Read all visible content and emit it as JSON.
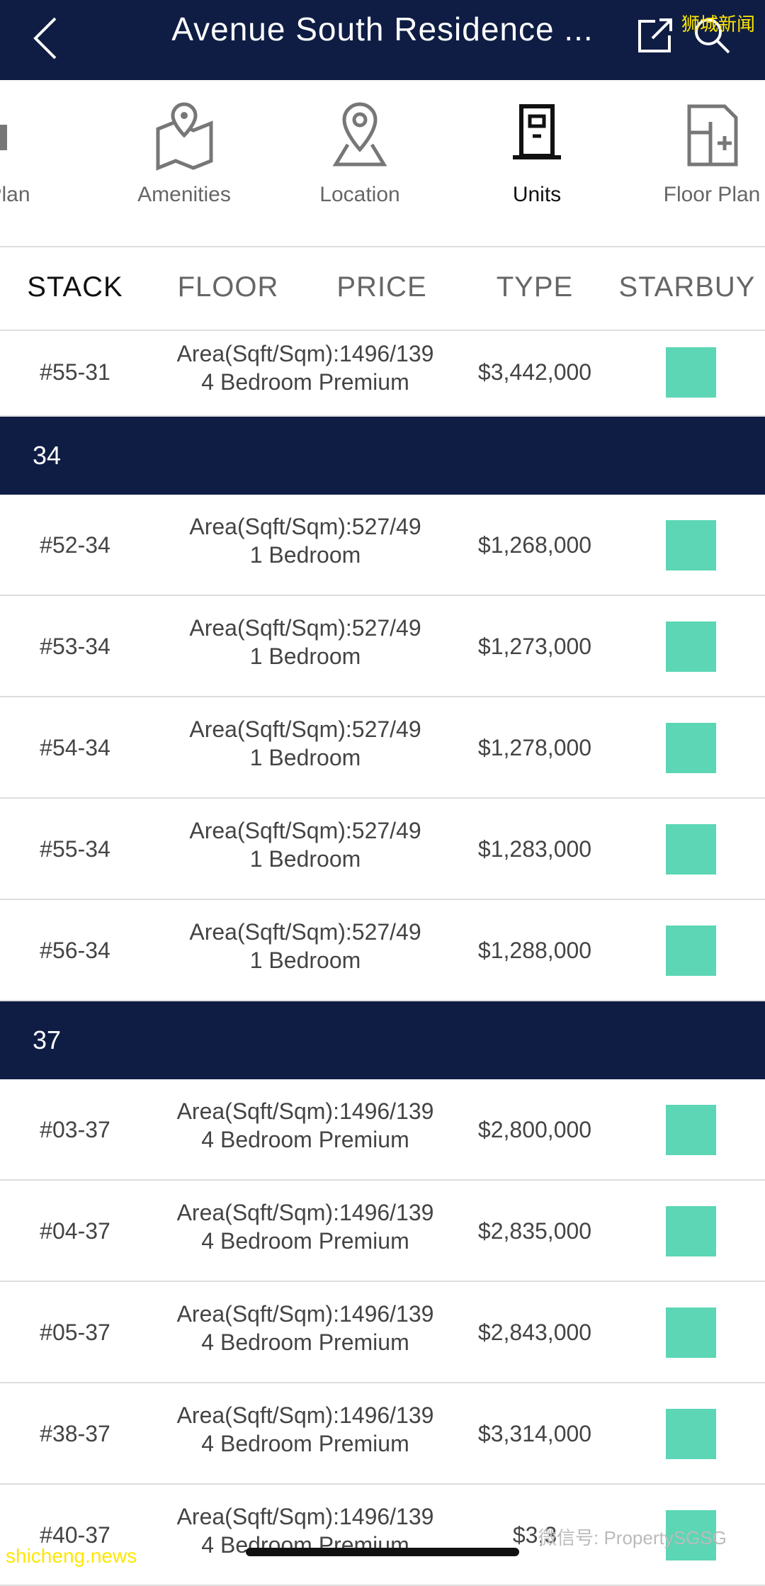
{
  "header": {
    "title": "Avenue South Residence ...",
    "watermark": "狮城新闻"
  },
  "nav": [
    {
      "label": "e Plan"
    },
    {
      "label": "Amenities"
    },
    {
      "label": "Location"
    },
    {
      "label": "Units"
    },
    {
      "label": "Floor Plan"
    }
  ],
  "table": {
    "columns": [
      "STACK",
      "FLOOR",
      "PRICE",
      "TYPE",
      "STARBUY"
    ],
    "top_rows": [
      {
        "stack": "#55-31",
        "area": "Area(Sqft/Sqm):1496/139",
        "type": "4 Bedroom Premium",
        "price": "$3,442,000"
      }
    ],
    "groups": [
      {
        "label": "34",
        "rows": [
          {
            "stack": "#52-34",
            "area": "Area(Sqft/Sqm):527/49",
            "type": "1 Bedroom",
            "price": "$1,268,000"
          },
          {
            "stack": "#53-34",
            "area": "Area(Sqft/Sqm):527/49",
            "type": "1 Bedroom",
            "price": "$1,273,000"
          },
          {
            "stack": "#54-34",
            "area": "Area(Sqft/Sqm):527/49",
            "type": "1 Bedroom",
            "price": "$1,278,000"
          },
          {
            "stack": "#55-34",
            "area": "Area(Sqft/Sqm):527/49",
            "type": "1 Bedroom",
            "price": "$1,283,000"
          },
          {
            "stack": "#56-34",
            "area": "Area(Sqft/Sqm):527/49",
            "type": "1 Bedroom",
            "price": "$1,288,000"
          }
        ]
      },
      {
        "label": "37",
        "rows": [
          {
            "stack": "#03-37",
            "area": "Area(Sqft/Sqm):1496/139",
            "type": "4 Bedroom Premium",
            "price": "$2,800,000"
          },
          {
            "stack": "#04-37",
            "area": "Area(Sqft/Sqm):1496/139",
            "type": "4 Bedroom Premium",
            "price": "$2,835,000"
          },
          {
            "stack": "#05-37",
            "area": "Area(Sqft/Sqm):1496/139",
            "type": "4 Bedroom Premium",
            "price": "$2,843,000"
          },
          {
            "stack": "#38-37",
            "area": "Area(Sqft/Sqm):1496/139",
            "type": "4 Bedroom Premium",
            "price": "$3,314,000"
          },
          {
            "stack": "#40-37",
            "area": "Area(Sqft/Sqm):1496/139",
            "type": "4 Bedroom Premium",
            "price": "$3,3"
          }
        ]
      }
    ]
  },
  "watermarks": {
    "left": "shicheng.news",
    "right": "微信号: PropertySGSG"
  }
}
